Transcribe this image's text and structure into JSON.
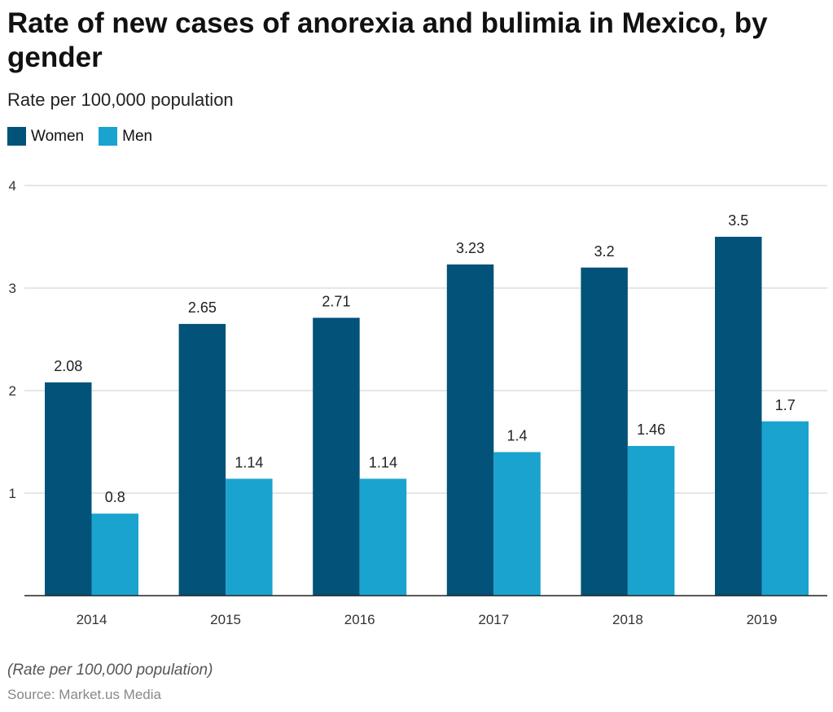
{
  "chart_data": {
    "type": "bar",
    "title": "Rate of new cases of anorexia and bulimia in Mexico, by gender",
    "subtitle": "Rate per 100,000 population",
    "categories": [
      "2014",
      "2015",
      "2016",
      "2017",
      "2018",
      "2019"
    ],
    "series": [
      {
        "name": "Women",
        "values": [
          2.08,
          2.65,
          2.71,
          3.23,
          3.2,
          3.5
        ],
        "labels": [
          "2.08",
          "2.65",
          "2.71",
          "3.23",
          "3.2",
          "3.5"
        ],
        "color": "#02527A"
      },
      {
        "name": "Men",
        "values": [
          0.8,
          1.14,
          1.14,
          1.4,
          1.46,
          1.7
        ],
        "labels": [
          "0.8",
          "1.14",
          "1.14",
          "1.4",
          "1.46",
          "1.7"
        ],
        "color": "#1AA3CF"
      }
    ],
    "ylim": [
      0,
      4
    ],
    "yticks": [
      1,
      2,
      3,
      4
    ],
    "grid": true,
    "legend": "top-left",
    "note": "(Rate per 100,000 population)",
    "source": "Source: Market.us Media"
  }
}
